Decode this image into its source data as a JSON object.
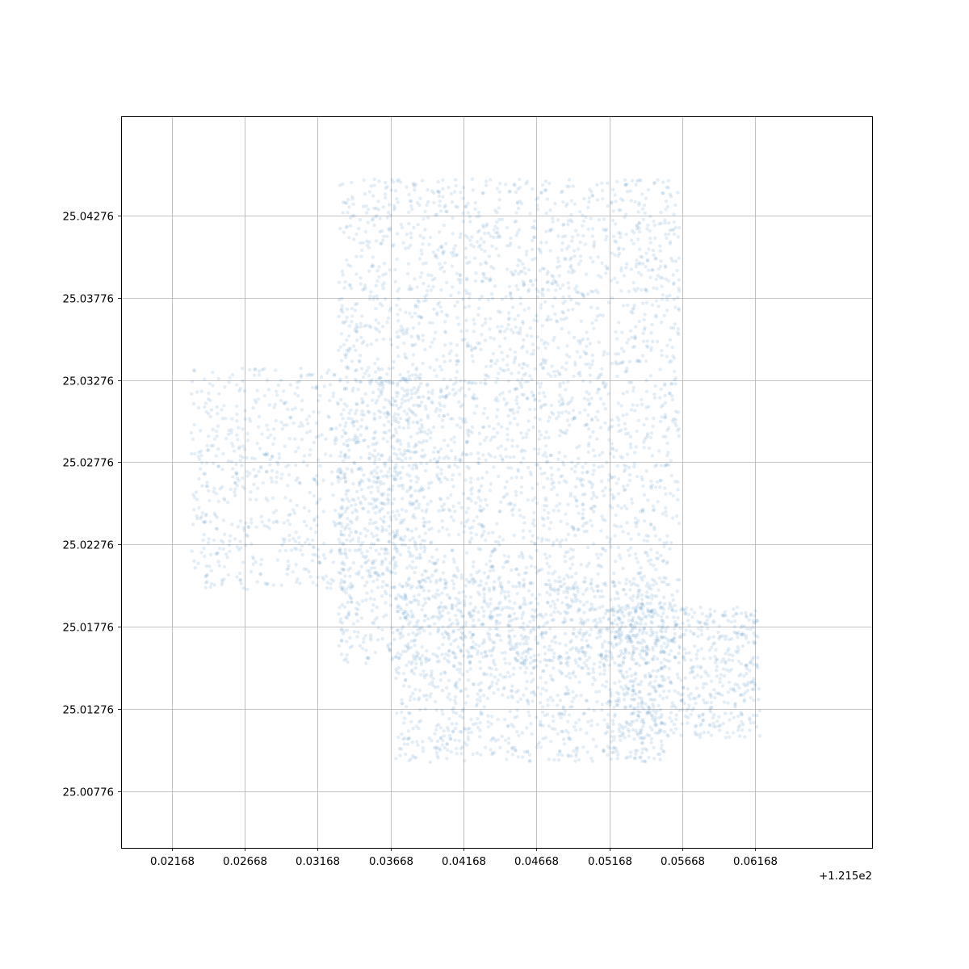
{
  "chart_data": {
    "type": "scatter",
    "title": "",
    "xlabel": "",
    "ylabel": "",
    "x_offset_label": "+1.215e2",
    "x_offset": 121.5,
    "xlim": [
      0.0182,
      0.0697
    ],
    "ylim": [
      25.0043,
      25.0488
    ],
    "x_ticks": [
      0.02168,
      0.02668,
      0.03168,
      0.03668,
      0.04168,
      0.04668,
      0.05168,
      0.05668,
      0.06168
    ],
    "x_tick_labels": [
      "0.02168",
      "0.02668",
      "0.03168",
      "0.03668",
      "0.04168",
      "0.04668",
      "0.05168",
      "0.05668",
      "0.06168"
    ],
    "y_ticks": [
      25.00776,
      25.01276,
      25.01776,
      25.02276,
      25.02776,
      25.03276,
      25.03776,
      25.04276
    ],
    "y_tick_labels": [
      "25.00776",
      "25.01276",
      "25.01776",
      "25.02276",
      "25.02776",
      "25.03276",
      "25.03776",
      "25.04276"
    ],
    "grid": true,
    "point_color": "#1f77b4",
    "point_alpha": 0.12,
    "point_count": 6000,
    "density_regions": [
      {
        "x": [
          0.0331,
          0.0565
        ],
        "y": [
          25.0155,
          25.045
        ],
        "weight": 0.55
      },
      {
        "x": [
          0.023,
          0.039
        ],
        "y": [
          25.02,
          25.0335
        ],
        "weight": 0.15
      },
      {
        "x": [
          0.037,
          0.0555
        ],
        "y": [
          25.0095,
          25.0205
        ],
        "weight": 0.2
      },
      {
        "x": [
          0.052,
          0.062
        ],
        "y": [
          25.011,
          25.019
        ],
        "weight": 0.1
      }
    ]
  }
}
